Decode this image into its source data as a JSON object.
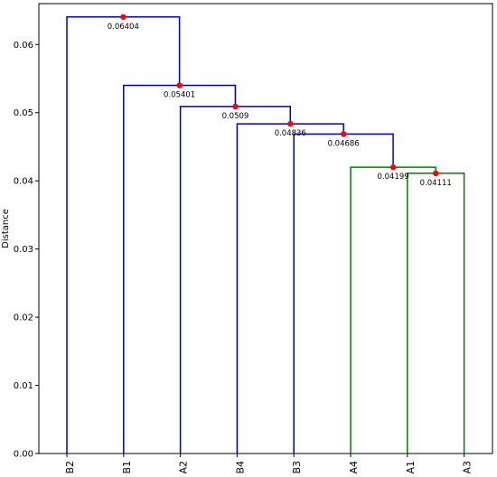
{
  "chart_data": {
    "type": "dendrogram",
    "title": "",
    "xlabel": "",
    "ylabel": "Distance",
    "ylim": [
      0,
      0.066
    ],
    "yticks": [
      0.0,
      0.01,
      0.02,
      0.03,
      0.04,
      0.05,
      0.06
    ],
    "ytick_labels": [
      "0.00",
      "0.01",
      "0.02",
      "0.03",
      "0.04",
      "0.05",
      "0.06"
    ],
    "leaves": [
      "B2",
      "B1",
      "A2",
      "B4",
      "B3",
      "A4",
      "A1",
      "A3"
    ],
    "colors": {
      "above_threshold": "#0000cc",
      "cluster": "#008000",
      "merge_point": "#ff0000",
      "axis": "#000000"
    },
    "merges": [
      {
        "left": {
          "leaf": "A1"
        },
        "right": {
          "leaf": "A3"
        },
        "height": 0.04111,
        "label": "0.04111",
        "color": "#008000"
      },
      {
        "left": {
          "leaf": "A4"
        },
        "right": {
          "merge": 0
        },
        "height": 0.04199,
        "label": "0.04199",
        "color": "#008000"
      },
      {
        "left": {
          "leaf": "B3"
        },
        "right": {
          "merge": 1
        },
        "height": 0.04686,
        "label": "0.04686",
        "color": "#0000cc"
      },
      {
        "left": {
          "leaf": "B4"
        },
        "right": {
          "merge": 2
        },
        "height": 0.04836,
        "label": "0.04836",
        "color": "#0000cc"
      },
      {
        "left": {
          "leaf": "A2"
        },
        "right": {
          "merge": 3
        },
        "height": 0.0509,
        "label": "0.0509",
        "color": "#0000cc"
      },
      {
        "left": {
          "leaf": "B1"
        },
        "right": {
          "merge": 4
        },
        "height": 0.05401,
        "label": "0.05401",
        "color": "#0000cc"
      },
      {
        "left": {
          "leaf": "B2"
        },
        "right": {
          "merge": 5
        },
        "height": 0.06404,
        "label": "0.06404",
        "color": "#0000cc"
      }
    ]
  }
}
